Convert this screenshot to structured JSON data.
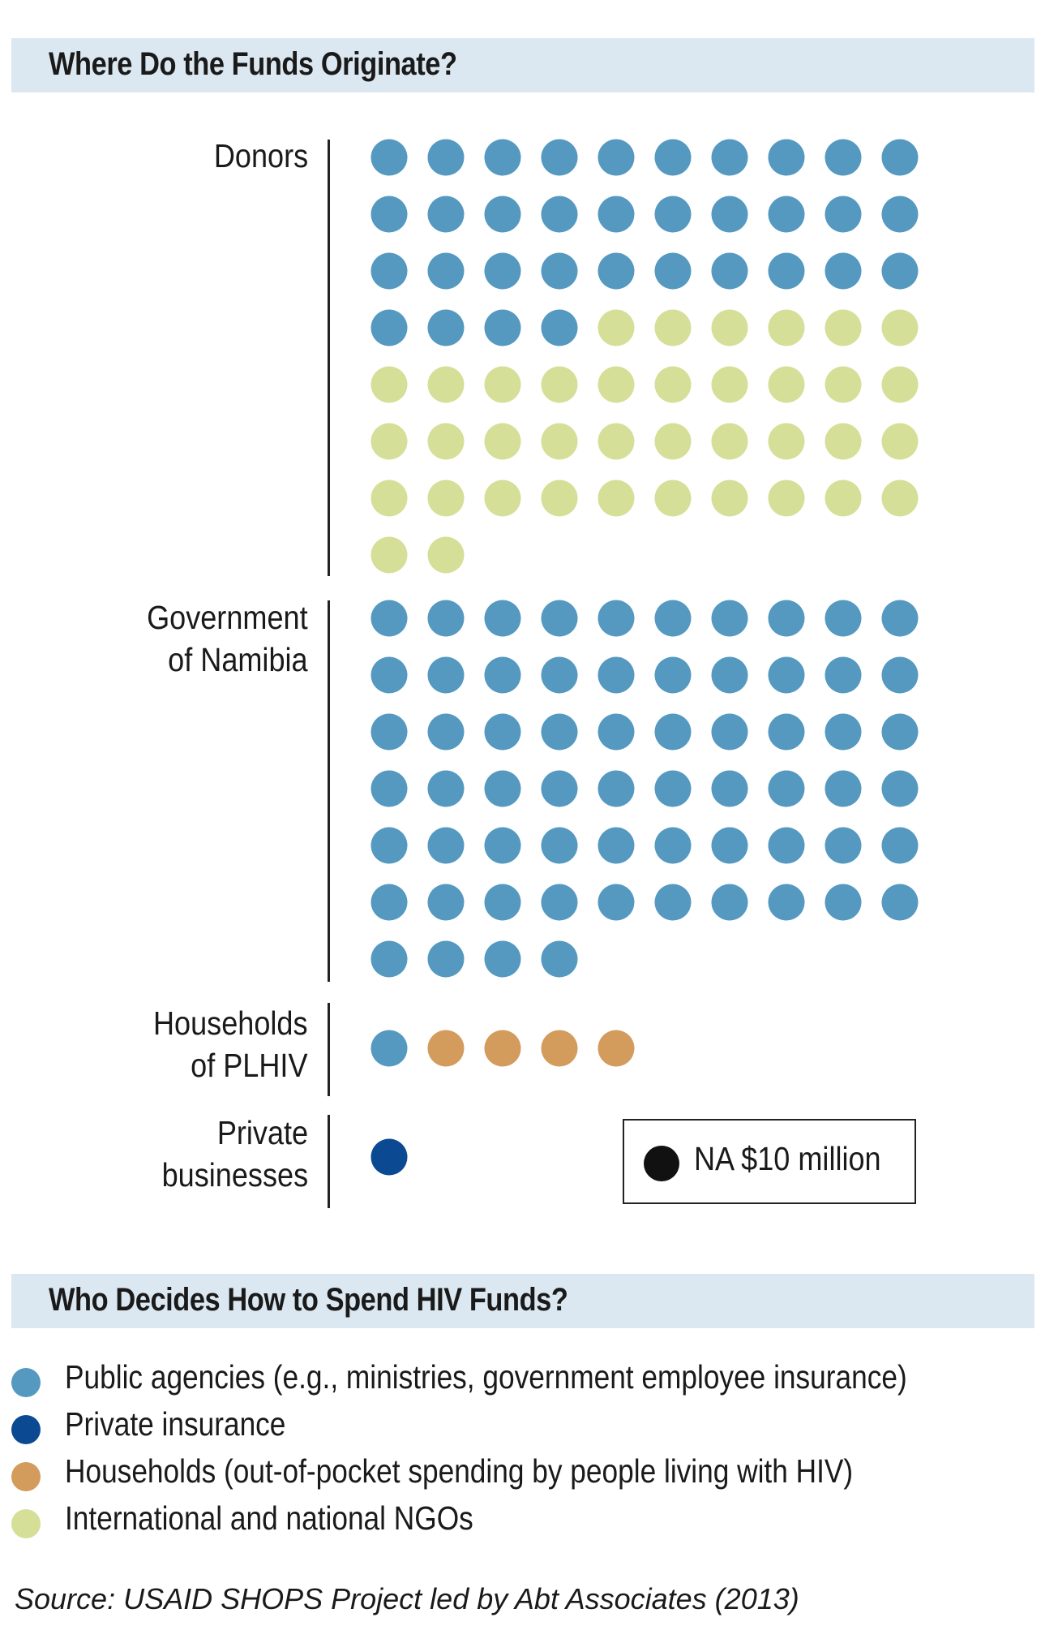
{
  "section1": {
    "title": "Where Do the Funds Originate?"
  },
  "section2": {
    "title": "Who Decides How to Spend HIV Funds?"
  },
  "chart_data": {
    "type": "unit dot chart (pictogram)",
    "unit": "NA $10 million",
    "unit_label": "NA $10 million",
    "dots_per_row": 10,
    "categories": [
      {
        "label_lines": [
          "Donors"
        ],
        "counts": {
          "Public agencies": 34,
          "International and national NGOs": 38
        },
        "total_dots": 72
      },
      {
        "label_lines": [
          "Government",
          "of Namibia"
        ],
        "counts": {
          "Public agencies": 64
        },
        "total_dots": 64
      },
      {
        "label_lines": [
          "Households",
          "of PLHIV"
        ],
        "counts": {
          "Public agencies": 1,
          "Households": 4
        },
        "total_dots": 5
      },
      {
        "label_lines": [
          "Private",
          "businesses"
        ],
        "counts": {
          "Private insurance": 1
        },
        "total_dots": 1
      }
    ],
    "legend": [
      {
        "key": "Public agencies",
        "label": "Public agencies (e.g., ministries, government employee insurance)",
        "color": "#5599c0"
      },
      {
        "key": "Private insurance",
        "label": "Private insurance",
        "color": "#0b4a93"
      },
      {
        "key": "Households",
        "label": "Households (out-of-pocket spending by people living with HIV)",
        "color": "#d39c5c"
      },
      {
        "key": "International and national NGOs",
        "label": "International and national NGOs",
        "color": "#d5df97"
      }
    ]
  },
  "source": "Source: USAID SHOPS Project led by Abt Associates (2013)"
}
